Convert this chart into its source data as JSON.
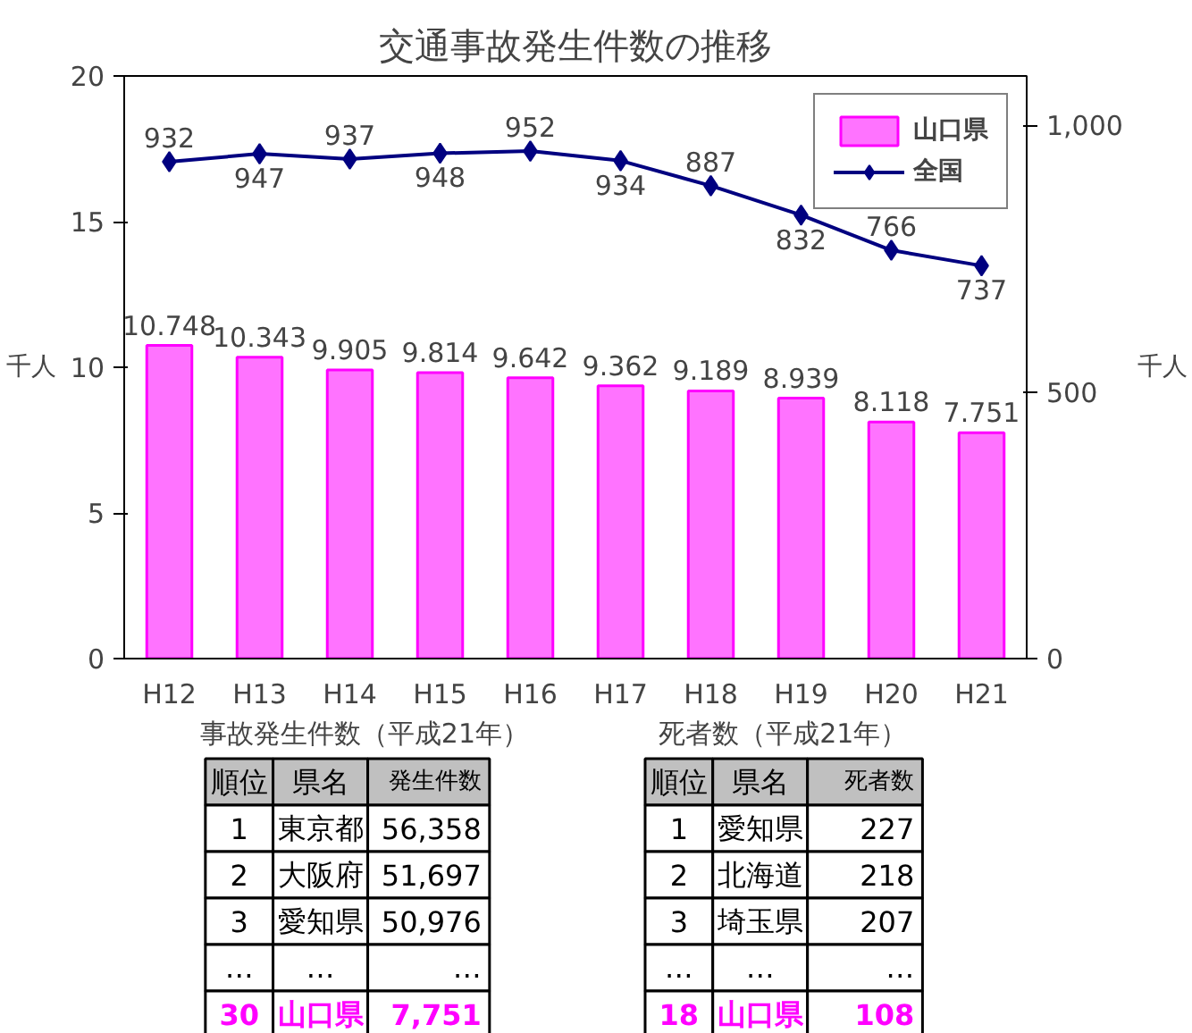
{
  "chart_data": {
    "type": "bar",
    "title": "交通事故発生件数の推移",
    "categories": [
      "H12",
      "H13",
      "H14",
      "H15",
      "H16",
      "H17",
      "H18",
      "H19",
      "H20",
      "H21"
    ],
    "series": [
      {
        "name": "山口県",
        "color": "#ff00ff",
        "values": [
          10.748,
          10.343,
          9.905,
          9.814,
          9.642,
          9.362,
          9.189,
          8.939,
          8.118,
          7.751
        ]
      },
      {
        "name": "全国",
        "type": "line",
        "axis": "y2",
        "color": "#000080",
        "values": [
          932,
          947,
          937,
          948,
          952,
          934,
          887,
          832,
          766,
          737
        ]
      }
    ],
    "ylabel": "千人",
    "y2label": "千人",
    "ylim": [
      0,
      20
    ],
    "yticks": [
      0,
      5,
      10,
      15,
      20
    ],
    "y2lim": [
      0,
      1093
    ],
    "y2ticks": [
      0,
      500,
      {
        "value": 1000,
        "label": "1,000"
      }
    ],
    "data_labels": true,
    "grid": false,
    "legend": "top right",
    "marker": "diamond",
    "line_style": "solid",
    "annotations": [
      "事故発生件数（平成21年）",
      "順位",
      "県名",
      "発生件数",
      "1",
      "東京都",
      "56,358",
      "2",
      "大阪府",
      "51,697",
      "3",
      "愛知県",
      "50,976",
      "…",
      "…",
      "…",
      "30",
      "山口県",
      "7,751",
      "死者数（平成21年）",
      "順位",
      "県名",
      "死者数",
      "1",
      "愛知県",
      "227",
      "2",
      "北海道",
      "218",
      "3",
      "埼玉県",
      "207",
      "…",
      "…",
      "…",
      "18",
      "山口県",
      "108"
    ]
  }
}
